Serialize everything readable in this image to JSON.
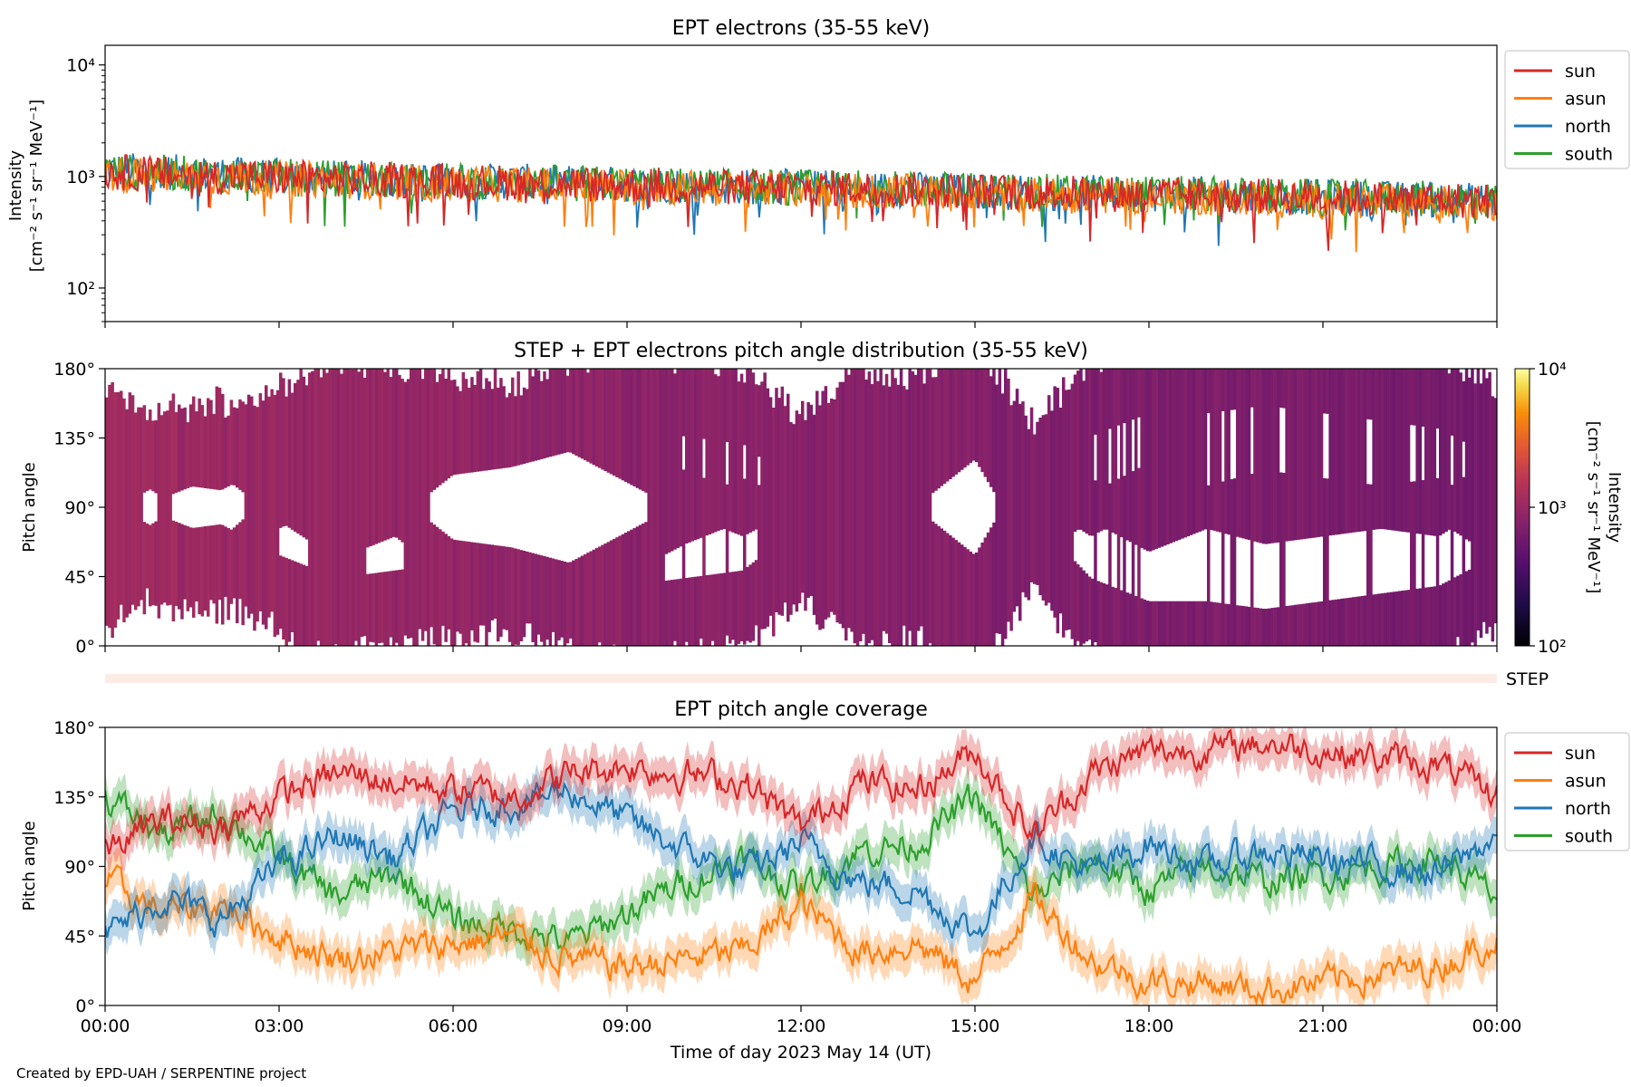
{
  "chart_data": [
    {
      "type": "line",
      "title": "EPT electrons (35-55 keV)",
      "ylabel_line1": "Intensity",
      "ylabel_line2": "[cm⁻² s⁻¹ sr⁻¹ MeV⁻¹]",
      "yscale": "log",
      "ylim": [
        50,
        15000
      ],
      "yticks": [
        {
          "value": 100,
          "label": "10²"
        },
        {
          "value": 1000,
          "label": "10³"
        },
        {
          "value": 10000,
          "label": "10⁴"
        }
      ],
      "xlim_hours": [
        0,
        24
      ],
      "legend_placement": "outside-right",
      "series": [
        {
          "name": "sun",
          "color": "#d62728",
          "x_hours": [
            0,
            1,
            2,
            3,
            4,
            5,
            6,
            7,
            8,
            9,
            10,
            11,
            12,
            13,
            14,
            15,
            16,
            17,
            18,
            19,
            20,
            21,
            22,
            23,
            24
          ],
          "values": [
            1100,
            1050,
            1000,
            980,
            950,
            930,
            900,
            880,
            860,
            840,
            820,
            800,
            790,
            780,
            760,
            740,
            720,
            700,
            690,
            680,
            670,
            650,
            630,
            620,
            600
          ]
        },
        {
          "name": "asun",
          "color": "#ff7f0e",
          "x_hours": [
            0,
            1,
            2,
            3,
            4,
            5,
            6,
            7,
            8,
            9,
            10,
            11,
            12,
            13,
            14,
            15,
            16,
            17,
            18,
            19,
            20,
            21,
            22,
            23,
            24
          ],
          "values": [
            1050,
            1000,
            980,
            950,
            920,
            900,
            870,
            850,
            830,
            810,
            790,
            770,
            760,
            740,
            720,
            700,
            680,
            670,
            660,
            650,
            630,
            610,
            590,
            580,
            570
          ]
        },
        {
          "name": "north",
          "color": "#1f77b4",
          "x_hours": [
            0,
            1,
            2,
            3,
            4,
            5,
            6,
            7,
            8,
            9,
            10,
            11,
            12,
            13,
            14,
            15,
            16,
            17,
            18,
            19,
            20,
            21,
            22,
            23,
            24
          ],
          "values": [
            1150,
            1100,
            1050,
            1000,
            970,
            950,
            920,
            900,
            880,
            850,
            830,
            810,
            800,
            780,
            760,
            740,
            720,
            710,
            700,
            690,
            670,
            650,
            630,
            620,
            600
          ]
        },
        {
          "name": "south",
          "color": "#2ca02c",
          "x_hours": [
            0,
            1,
            2,
            3,
            4,
            5,
            6,
            7,
            8,
            9,
            10,
            11,
            12,
            13,
            14,
            15,
            16,
            17,
            18,
            19,
            20,
            21,
            22,
            23,
            24
          ],
          "values": [
            1100,
            1080,
            1030,
            990,
            960,
            940,
            910,
            890,
            870,
            850,
            830,
            810,
            800,
            790,
            770,
            750,
            730,
            710,
            700,
            690,
            670,
            650,
            640,
            630,
            610
          ]
        }
      ]
    },
    {
      "type": "heatmap",
      "title": "STEP + EPT electrons pitch angle distribution (35-55 keV)",
      "ylabel": "Pitch angle",
      "ylim": [
        0,
        180
      ],
      "yticks": [
        {
          "value": 0,
          "label": "0°"
        },
        {
          "value": 45,
          "label": "45°"
        },
        {
          "value": 90,
          "label": "90°"
        },
        {
          "value": 135,
          "label": "135°"
        },
        {
          "value": 180,
          "label": "180°"
        }
      ],
      "xlim_hours": [
        0,
        24
      ],
      "colormap": "inferno",
      "colorbar": {
        "label_line1": "Intensity",
        "label_line2": "[cm⁻² s⁻¹ sr⁻¹ MeV⁻¹]",
        "scale": "log",
        "range": [
          100,
          10000
        ],
        "ticks": [
          {
            "value": 100,
            "label": "10²"
          },
          {
            "value": 1000,
            "label": "10³"
          },
          {
            "value": 10000,
            "label": "10⁴"
          }
        ]
      }
    },
    {
      "type": "heatmap",
      "label": "STEP",
      "xlim_hours": [
        0,
        24
      ]
    },
    {
      "type": "line",
      "title": "EPT pitch angle coverage",
      "ylabel": "Pitch angle",
      "ylim": [
        0,
        180
      ],
      "yticks": [
        {
          "value": 0,
          "label": "0°"
        },
        {
          "value": 45,
          "label": "45°"
        },
        {
          "value": 90,
          "label": "90°"
        },
        {
          "value": 135,
          "label": "135°"
        },
        {
          "value": 180,
          "label": "180°"
        }
      ],
      "xlim_hours": [
        0,
        24
      ],
      "xlabel": "Time of day 2023 May 14 (UT)",
      "xticks": [
        {
          "value": 0,
          "label": "00:00"
        },
        {
          "value": 3,
          "label": "03:00"
        },
        {
          "value": 6,
          "label": "06:00"
        },
        {
          "value": 9,
          "label": "09:00"
        },
        {
          "value": 12,
          "label": "12:00"
        },
        {
          "value": 15,
          "label": "15:00"
        },
        {
          "value": 18,
          "label": "18:00"
        },
        {
          "value": 21,
          "label": "21:00"
        },
        {
          "value": 24,
          "label": "00:00"
        }
      ],
      "legend_placement": "outside-right",
      "series": [
        {
          "name": "sun",
          "color": "#d62728",
          "x_hours": [
            0,
            1,
            2,
            3,
            4,
            5,
            6,
            7,
            8,
            9,
            10,
            11,
            12,
            13,
            14,
            15,
            16,
            17,
            18,
            19,
            20,
            21,
            22,
            23,
            24
          ],
          "values": [
            100,
            120,
            115,
            135,
            150,
            145,
            140,
            135,
            150,
            155,
            150,
            145,
            115,
            145,
            140,
            165,
            110,
            150,
            165,
            165,
            170,
            165,
            160,
            155,
            135
          ]
        },
        {
          "name": "asun",
          "color": "#ff7f0e",
          "x_hours": [
            0,
            1,
            2,
            3,
            4,
            5,
            6,
            7,
            8,
            9,
            10,
            11,
            12,
            13,
            14,
            15,
            16,
            17,
            18,
            19,
            20,
            21,
            22,
            23,
            24
          ],
          "values": [
            80,
            60,
            65,
            45,
            30,
            35,
            40,
            45,
            30,
            25,
            30,
            35,
            65,
            35,
            40,
            15,
            70,
            30,
            15,
            15,
            10,
            15,
            20,
            25,
            45
          ]
        },
        {
          "name": "north",
          "color": "#1f77b4",
          "x_hours": [
            0,
            1,
            2,
            3,
            4,
            5,
            6,
            7,
            8,
            9,
            10,
            11,
            12,
            13,
            14,
            15,
            16,
            17,
            18,
            19,
            20,
            21,
            22,
            23,
            24
          ],
          "values": [
            45,
            70,
            55,
            90,
            110,
            95,
            125,
            130,
            140,
            120,
            100,
            85,
            105,
            80,
            75,
            45,
            110,
            85,
            105,
            90,
            100,
            95,
            90,
            85,
            110
          ]
        },
        {
          "name": "south",
          "color": "#2ca02c",
          "x_hours": [
            0,
            1,
            2,
            3,
            4,
            5,
            6,
            7,
            8,
            9,
            10,
            11,
            12,
            13,
            14,
            15,
            16,
            17,
            18,
            19,
            20,
            21,
            22,
            23,
            24
          ],
          "values": [
            135,
            110,
            125,
            95,
            70,
            85,
            55,
            50,
            40,
            60,
            80,
            95,
            75,
            100,
            105,
            135,
            70,
            95,
            75,
            90,
            80,
            85,
            90,
            95,
            70
          ]
        }
      ]
    }
  ],
  "credit": "Created by EPD-UAH / SERPENTINE project"
}
